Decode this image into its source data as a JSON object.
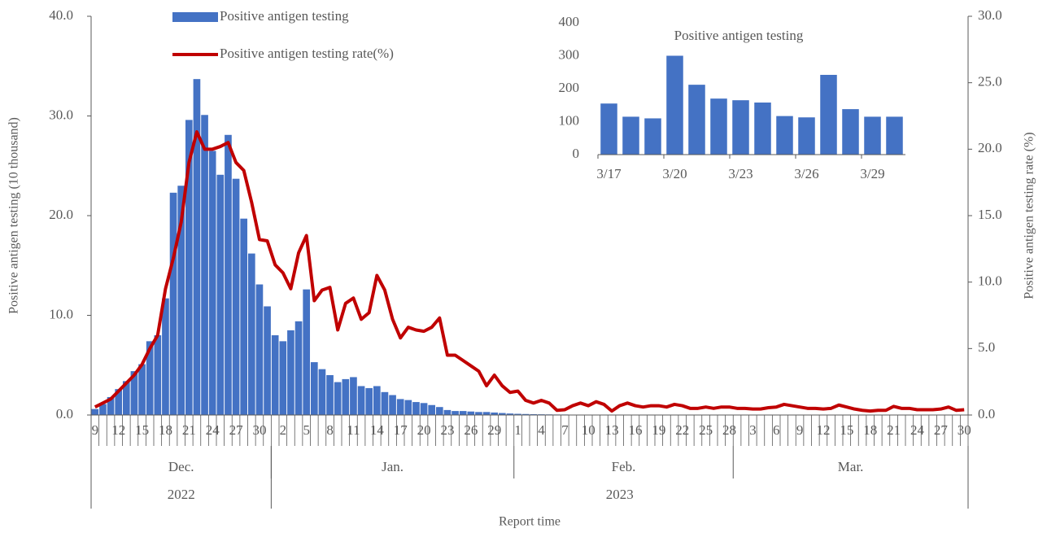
{
  "chart_data": [
    {
      "type": "combo",
      "ylabel": "Positive antigen testing (10 thousand)",
      "y2label": "Positive antigen testing rate (%)",
      "xlabel": "Report time",
      "legend": "top",
      "categories": [
        "9",
        null,
        null,
        "12",
        null,
        null,
        "15",
        null,
        null,
        "18",
        null,
        null,
        "21",
        null,
        null,
        "24",
        null,
        null,
        "27",
        null,
        null,
        "30",
        null,
        null,
        "2",
        null,
        null,
        "5",
        null,
        null,
        "8",
        null,
        null,
        "11",
        null,
        null,
        "14",
        null,
        null,
        "17",
        null,
        null,
        "20",
        null,
        null,
        "23",
        null,
        null,
        "26",
        null,
        null,
        "29",
        null,
        null,
        "1",
        null,
        null,
        "4",
        null,
        null,
        "7",
        null,
        null,
        "10",
        null,
        null,
        "13",
        null,
        null,
        "16",
        null,
        null,
        "19",
        null,
        null,
        "22",
        null,
        null,
        "25",
        null,
        null,
        "28",
        null,
        null,
        "3",
        null,
        null,
        "6",
        null,
        null,
        "9",
        null,
        null,
        "12",
        null,
        null,
        "15",
        null,
        null,
        "18",
        null,
        null,
        "21",
        null,
        null,
        "24",
        null,
        null,
        "27",
        null,
        null,
        "30"
      ],
      "month_groups": [
        {
          "label": "Dec.",
          "count": 23
        },
        {
          "label": "Jan.",
          "count": 31
        },
        {
          "label": "Feb.",
          "count": 28
        },
        {
          "label": "Mar.",
          "count": 30
        }
      ],
      "year_groups": [
        {
          "label": "2022",
          "count": 23
        },
        {
          "label": "2023",
          "count": 89
        }
      ],
      "ylim": [
        0,
        40
      ],
      "yticks": [
        {
          "value": 0,
          "label": "0.0"
        },
        {
          "value": 10,
          "label": "10.0"
        },
        {
          "value": 20,
          "label": "20.0"
        },
        {
          "value": 30,
          "label": "30.0"
        },
        {
          "value": 40,
          "label": "40.0"
        }
      ],
      "y2lim": [
        0,
        30
      ],
      "y2ticks": [
        {
          "value": 0,
          "label": "0.0"
        },
        {
          "value": 5,
          "label": "5.0"
        },
        {
          "value": 10,
          "label": "10.0"
        },
        {
          "value": 15,
          "label": "15.0"
        },
        {
          "value": 20,
          "label": "20.0"
        },
        {
          "value": 25,
          "label": "25.0"
        },
        {
          "value": 30,
          "label": "30.0"
        }
      ],
      "series": [
        {
          "name": "Positive antigen testing",
          "type": "bar",
          "color": "#4472c4",
          "values": [
            0.6,
            1.1,
            1.8,
            2.6,
            3.4,
            4.4,
            5.1,
            7.4,
            8.0,
            11.7,
            22.3,
            23.0,
            29.6,
            33.7,
            30.1,
            26.5,
            24.1,
            28.1,
            23.7,
            19.7,
            16.2,
            13.1,
            10.9,
            8.0,
            7.4,
            8.5,
            9.4,
            12.6,
            5.3,
            4.6,
            4.0,
            3.3,
            3.6,
            3.8,
            2.9,
            2.7,
            2.9,
            2.3,
            2.0,
            1.6,
            1.5,
            1.3,
            1.2,
            1.0,
            0.8,
            0.5,
            0.4,
            0.4,
            0.35,
            0.3,
            0.3,
            0.25,
            0.2,
            0.15,
            0.12,
            0.1,
            0.08,
            0.07,
            0.06,
            0.05,
            0.05,
            0.04,
            0.04,
            0.04,
            0.03,
            0.03,
            0.03,
            0.03,
            0.03,
            0.03,
            0.03,
            0.03,
            0.02,
            0.02,
            0.02,
            0.02,
            0.02,
            0.02,
            0.02,
            0.02,
            0.02,
            0.02,
            0.02,
            0.02,
            0.02,
            0.02,
            0.02,
            0.02,
            0.02,
            0.02,
            0.02,
            0.02,
            0.02,
            0.02,
            0.02,
            0.02,
            0.02,
            0.02,
            0.0155,
            0.0115,
            0.011,
            0.03,
            0.0212,
            0.017,
            0.0165,
            0.0158,
            0.0117,
            0.0113,
            0.0242,
            0.0138,
            0.0115,
            0.0115
          ]
        },
        {
          "name": "Positive antigen testing rate(%)",
          "type": "line",
          "axis": "y2",
          "color": "#c00000",
          "values": [
            0.6,
            0.9,
            1.2,
            1.8,
            2.4,
            3.0,
            3.8,
            5.0,
            6.0,
            9.5,
            11.8,
            14.5,
            19.0,
            21.3,
            20.0,
            20.0,
            20.2,
            20.5,
            19.0,
            18.4,
            16.0,
            13.2,
            13.1,
            11.3,
            10.7,
            9.5,
            12.2,
            13.5,
            8.6,
            9.4,
            9.6,
            6.4,
            8.4,
            8.8,
            7.2,
            7.7,
            10.5,
            9.4,
            7.2,
            5.8,
            6.6,
            6.4,
            6.3,
            6.6,
            7.3,
            4.5,
            4.5,
            4.1,
            3.7,
            3.3,
            2.2,
            3.0,
            2.2,
            1.7,
            1.8,
            1.1,
            0.9,
            1.1,
            0.9,
            0.35,
            0.4,
            0.7,
            0.9,
            0.7,
            1.0,
            0.8,
            0.3,
            0.7,
            0.9,
            0.7,
            0.6,
            0.7,
            0.7,
            0.6,
            0.8,
            0.7,
            0.5,
            0.5,
            0.6,
            0.5,
            0.6,
            0.6,
            0.5,
            0.5,
            0.45,
            0.45,
            0.55,
            0.6,
            0.8,
            0.7,
            0.6,
            0.5,
            0.5,
            0.45,
            0.5,
            0.75,
            0.6,
            0.45,
            0.35,
            0.3,
            0.35,
            0.35,
            0.65,
            0.5,
            0.5,
            0.4,
            0.4,
            0.4,
            0.45,
            0.6,
            0.35,
            0.4
          ]
        }
      ]
    },
    {
      "type": "bar",
      "title": "Positive antigen testing",
      "color": "#4472c4",
      "categories": [
        "3/17",
        null,
        null,
        "3/20",
        null,
        null,
        "3/23",
        null,
        null,
        "3/26",
        null,
        null,
        "3/29",
        null
      ],
      "values": [
        155,
        115,
        110,
        300,
        212,
        170,
        165,
        158,
        117,
        113,
        242,
        138,
        115,
        115
      ],
      "ylim": [
        0,
        400
      ],
      "yticks": [
        0,
        100,
        200,
        300,
        400
      ]
    }
  ]
}
